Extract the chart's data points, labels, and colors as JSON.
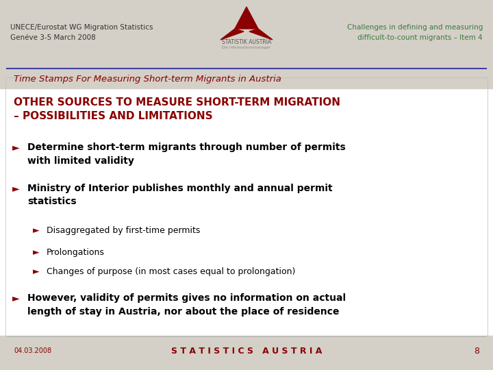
{
  "bg_color": "#d4d0c8",
  "content_bg": "#ffffff",
  "header_left_text": "UNECE/Eurostat WG Migration Statistics\nGenéve 3-5 March 2008",
  "header_right_text": "Challenges in defining and measuring\ndifficult-to-count migrants – Item 4",
  "header_left_color": "#333333",
  "header_right_color": "#3a7a3a",
  "subtitle_text": "Time Stamps For Measuring Short-term Migrants in Austria",
  "subtitle_color": "#8b0000",
  "title_text": "OTHER SOURCES TO MEASURE SHORT-TERM MIGRATION\n– POSSIBILITIES AND LIMITATIONS",
  "title_color": "#8b0000",
  "bullet_color": "#8b0000",
  "bullet_text_color": "#000000",
  "bullets": [
    {
      "level": 1,
      "text": "Determine short-term migrants through number of permits\nwith limited validity",
      "bold": true
    },
    {
      "level": 1,
      "text": "Ministry of Interior publishes monthly and annual permit\nstatistics",
      "bold": true
    },
    {
      "level": 2,
      "text": "Disaggregated by first-time permits",
      "bold": false
    },
    {
      "level": 2,
      "text": "Prolongations",
      "bold": false
    },
    {
      "level": 2,
      "text": "Changes of purpose (in most cases equal to prolongation)",
      "bold": false
    },
    {
      "level": 1,
      "text": "However, validity of permits gives no information on actual\nlength of stay in Austria, nor about the place of residence",
      "bold": true
    }
  ],
  "footer_date": "04.03.2008",
  "footer_center": "S T A T I S T I C S   A U S T R I A",
  "footer_page": "8",
  "footer_color": "#8b0000",
  "divider_color": "#4040a0",
  "logo_color": "#8b0000",
  "logo_text": "STATISTIK AUSTRIA",
  "logo_subtext": "Die Informationsmanager"
}
